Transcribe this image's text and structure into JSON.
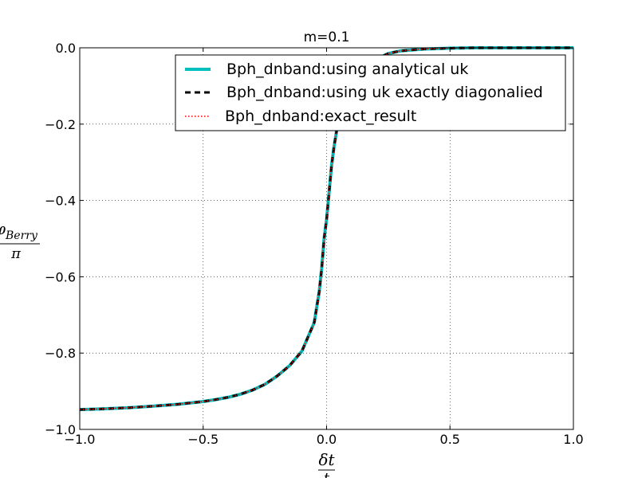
{
  "chart_data": {
    "type": "line",
    "title": "m=0.1",
    "xlabel": {
      "numerator": "δt",
      "denominator": "t"
    },
    "ylabel": {
      "numerator": "φ",
      "subscript": "Berry",
      "denominator": "π"
    },
    "xlim": [
      -1.0,
      1.0
    ],
    "ylim": [
      -1.0,
      0.0
    ],
    "xticks": [
      -1.0,
      -0.5,
      0.0,
      0.5,
      1.0
    ],
    "xtick_labels": [
      "−1.0",
      "−0.5",
      "0.0",
      "0.5",
      "1.0"
    ],
    "yticks": [
      0.0,
      -0.2,
      -0.4,
      -0.6,
      -0.8,
      -1.0
    ],
    "ytick_labels": [
      "0.0",
      "−0.2",
      "−0.4",
      "−0.6",
      "−0.8",
      "−1.0"
    ],
    "grid": true,
    "legend_position": "top-right",
    "x": [
      -1.0,
      -0.9,
      -0.8,
      -0.7,
      -0.6,
      -0.5,
      -0.45,
      -0.4,
      -0.35,
      -0.3,
      -0.25,
      -0.2,
      -0.15,
      -0.1,
      -0.05,
      -0.03,
      -0.02,
      -0.01,
      0.0,
      0.01,
      0.02,
      0.03,
      0.05,
      0.1,
      0.15,
      0.2,
      0.25,
      0.3,
      0.4,
      0.5,
      0.6,
      0.7,
      0.8,
      0.9,
      1.0
    ],
    "series": [
      {
        "name": "Bph_dnband:using analytical uk",
        "color": "#00bfbf",
        "style": "solid",
        "values": [
          -0.948,
          -0.946,
          -0.943,
          -0.939,
          -0.934,
          -0.927,
          -0.922,
          -0.916,
          -0.908,
          -0.897,
          -0.882,
          -0.86,
          -0.833,
          -0.795,
          -0.72,
          -0.64,
          -0.58,
          -0.5,
          -0.45,
          -0.38,
          -0.31,
          -0.26,
          -0.18,
          -0.1,
          -0.055,
          -0.03,
          -0.015,
          -0.008,
          -0.003,
          -0.001,
          0.0,
          0.0,
          0.0,
          0.0,
          0.0
        ]
      },
      {
        "name": "Bph_dnband:using uk exactly diagonalied",
        "color": "#000000",
        "style": "dashed",
        "values": [
          -0.948,
          -0.946,
          -0.943,
          -0.939,
          -0.934,
          -0.927,
          -0.922,
          -0.916,
          -0.908,
          -0.897,
          -0.882,
          -0.86,
          -0.833,
          -0.795,
          -0.72,
          -0.64,
          -0.58,
          -0.5,
          -0.45,
          -0.38,
          -0.31,
          -0.26,
          -0.18,
          -0.1,
          -0.055,
          -0.03,
          -0.015,
          -0.008,
          -0.003,
          -0.001,
          0.0,
          0.0,
          0.0,
          0.0,
          0.0
        ]
      },
      {
        "name": "Bph_dnband:exact_result",
        "color": "#ff0000",
        "style": "dotted",
        "values": [
          -0.948,
          -0.946,
          -0.943,
          -0.939,
          -0.934,
          -0.927,
          -0.922,
          -0.916,
          -0.908,
          -0.897,
          -0.882,
          -0.86,
          -0.833,
          -0.795,
          -0.72,
          -0.64,
          -0.58,
          -0.5,
          -0.45,
          -0.38,
          -0.31,
          -0.26,
          -0.18,
          -0.1,
          -0.055,
          -0.03,
          -0.015,
          -0.008,
          -0.003,
          -0.001,
          0.0,
          0.0,
          0.0,
          0.0,
          0.0
        ]
      }
    ]
  }
}
